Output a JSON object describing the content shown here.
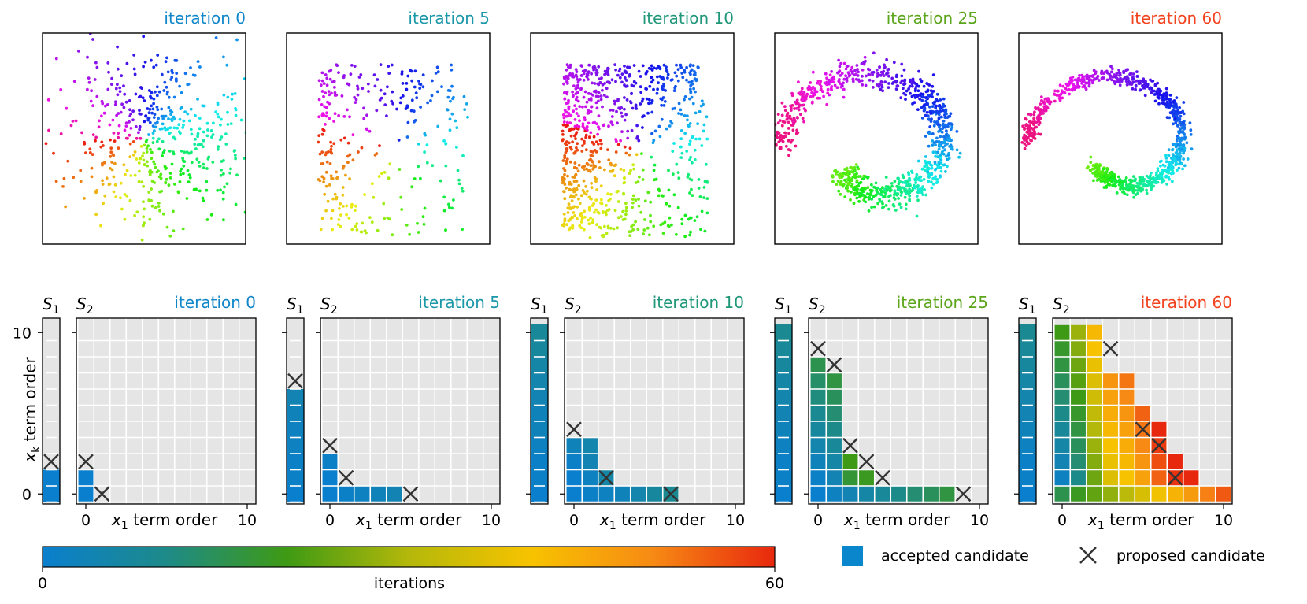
{
  "iteration_colors": {
    "0": "#1186c9",
    "5": "#1b98a8",
    "10": "#21977a",
    "25": "#5ba51b",
    "60": "#f2421e"
  },
  "colormap": [
    "#0a7fce",
    "#1d8a8a",
    "#3e9a14",
    "#b4b80a",
    "#f7c300",
    "#f78a14",
    "#e8280e"
  ],
  "chart_data": [
    {
      "type": "scatter",
      "title": "iteration 0",
      "iteration": 0,
      "shape": "cloud",
      "points": 520
    },
    {
      "type": "scatter",
      "title": "iteration 5",
      "iteration": 5,
      "shape": "square-cloud",
      "points": 300
    },
    {
      "type": "scatter",
      "title": "iteration 10",
      "iteration": 10,
      "shape": "square-cloud",
      "points": 800
    },
    {
      "type": "scatter",
      "title": "iteration 25",
      "iteration": 25,
      "shape": "partial-spiral",
      "points": 900
    },
    {
      "type": "scatter",
      "title": "iteration 60",
      "iteration": 60,
      "shape": "spiral",
      "points": 900
    },
    {
      "type": "heatmap",
      "title": "iteration 0",
      "iteration": 0,
      "s1": {
        "label": "S1",
        "accepted": [
          0,
          1
        ],
        "accepted_iter": [
          0,
          0
        ],
        "proposed": [
          2
        ]
      },
      "s2": {
        "label": "S2",
        "accepted": [
          [
            0,
            0
          ],
          [
            0,
            1
          ]
        ],
        "accepted_iter": [
          0,
          0
        ],
        "proposed": [
          [
            0,
            2
          ],
          [
            1,
            0
          ]
        ]
      }
    },
    {
      "type": "heatmap",
      "title": "iteration 5",
      "iteration": 5,
      "s1": {
        "label": "S1",
        "accepted": [
          0,
          1,
          2,
          3,
          4,
          5,
          6
        ],
        "accepted_iter": [
          0,
          1,
          1,
          2,
          2,
          3,
          4
        ],
        "proposed": [
          7
        ]
      },
      "s2": {
        "label": "S2",
        "accepted": [
          [
            0,
            0
          ],
          [
            0,
            1
          ],
          [
            0,
            2
          ],
          [
            1,
            0
          ],
          [
            2,
            0
          ],
          [
            3,
            0
          ],
          [
            4,
            0
          ]
        ],
        "accepted_iter": [
          0,
          0,
          1,
          1,
          2,
          3,
          4
        ],
        "proposed": [
          [
            0,
            3
          ],
          [
            1,
            1
          ],
          [
            5,
            0
          ]
        ]
      }
    },
    {
      "type": "heatmap",
      "title": "iteration 10",
      "iteration": 10,
      "s1": {
        "label": "S1",
        "accepted": [
          0,
          1,
          2,
          3,
          4,
          5,
          6,
          7,
          8,
          9,
          10
        ],
        "accepted_iter": [
          0,
          1,
          1,
          2,
          3,
          3,
          4,
          5,
          6,
          7,
          8
        ],
        "proposed": []
      },
      "s2": {
        "label": "S2",
        "accepted": [
          [
            0,
            0
          ],
          [
            0,
            1
          ],
          [
            0,
            2
          ],
          [
            0,
            3
          ],
          [
            1,
            0
          ],
          [
            1,
            1
          ],
          [
            1,
            2
          ],
          [
            1,
            3
          ],
          [
            2,
            0
          ],
          [
            2,
            1
          ],
          [
            3,
            0
          ],
          [
            4,
            0
          ],
          [
            5,
            0
          ],
          [
            6,
            0
          ]
        ],
        "accepted_iter": [
          0,
          0,
          1,
          3,
          1,
          2,
          4,
          5,
          2,
          6,
          3,
          5,
          7,
          9
        ],
        "proposed": [
          [
            0,
            4
          ],
          [
            2,
            1
          ],
          [
            6,
            0
          ]
        ]
      }
    },
    {
      "type": "heatmap",
      "title": "iteration 25",
      "iteration": 25,
      "s1": {
        "label": "S1",
        "accepted": [
          0,
          1,
          2,
          3,
          4,
          5,
          6,
          7,
          8,
          9,
          10
        ],
        "accepted_iter": [
          0,
          1,
          1,
          2,
          3,
          4,
          5,
          6,
          7,
          8,
          9
        ],
        "proposed": []
      },
      "s2": {
        "label": "S2",
        "accepted": [
          [
            0,
            0
          ],
          [
            0,
            1
          ],
          [
            0,
            2
          ],
          [
            0,
            3
          ],
          [
            0,
            4
          ],
          [
            0,
            5
          ],
          [
            0,
            6
          ],
          [
            0,
            7
          ],
          [
            0,
            8
          ],
          [
            1,
            0
          ],
          [
            1,
            1
          ],
          [
            1,
            2
          ],
          [
            1,
            3
          ],
          [
            1,
            4
          ],
          [
            1,
            5
          ],
          [
            1,
            6
          ],
          [
            1,
            7
          ],
          [
            2,
            0
          ],
          [
            2,
            1
          ],
          [
            2,
            2
          ],
          [
            3,
            0
          ],
          [
            3,
            1
          ],
          [
            4,
            0
          ],
          [
            5,
            0
          ],
          [
            6,
            0
          ],
          [
            7,
            0
          ],
          [
            8,
            0
          ]
        ],
        "accepted_iter": [
          0,
          1,
          3,
          5,
          7,
          9,
          11,
          13,
          15,
          2,
          4,
          6,
          8,
          10,
          12,
          14,
          16,
          4,
          17,
          20,
          6,
          19,
          8,
          10,
          12,
          14,
          16
        ],
        "proposed": [
          [
            0,
            9
          ],
          [
            1,
            8
          ],
          [
            2,
            3
          ],
          [
            3,
            2
          ],
          [
            4,
            1
          ],
          [
            9,
            0
          ]
        ]
      }
    },
    {
      "type": "heatmap",
      "title": "iteration 60",
      "iteration": 60,
      "s1": {
        "label": "S1",
        "accepted": [
          0,
          1,
          2,
          3,
          4,
          5,
          6,
          7,
          8,
          9,
          10
        ],
        "accepted_iter": [
          0,
          1,
          1,
          2,
          3,
          4,
          5,
          6,
          7,
          8,
          9
        ],
        "proposed": []
      },
      "s2": {
        "label": "S2",
        "proposed": [
          [
            3,
            9
          ],
          [
            5,
            4
          ],
          [
            6,
            3
          ],
          [
            7,
            1
          ]
        ]
      }
    }
  ],
  "heatmap_axes": {
    "xlabel_base": "x",
    "xlabel_sub": "1",
    "xlabel_rest": " term order",
    "ylabel_base": "x",
    "ylabel_sub": "k",
    "ylabel_rest": " term order",
    "xticks": [
      "0",
      "10"
    ],
    "yticks": [
      "0",
      "10"
    ],
    "s1_base": "S",
    "s1_sub": "1",
    "s2_base": "S",
    "s2_sub": "2"
  },
  "colorbar": {
    "label": "iterations",
    "min": "0",
    "max": "60"
  },
  "legend": {
    "accepted": "accepted candidate",
    "proposed": "proposed candidate"
  }
}
